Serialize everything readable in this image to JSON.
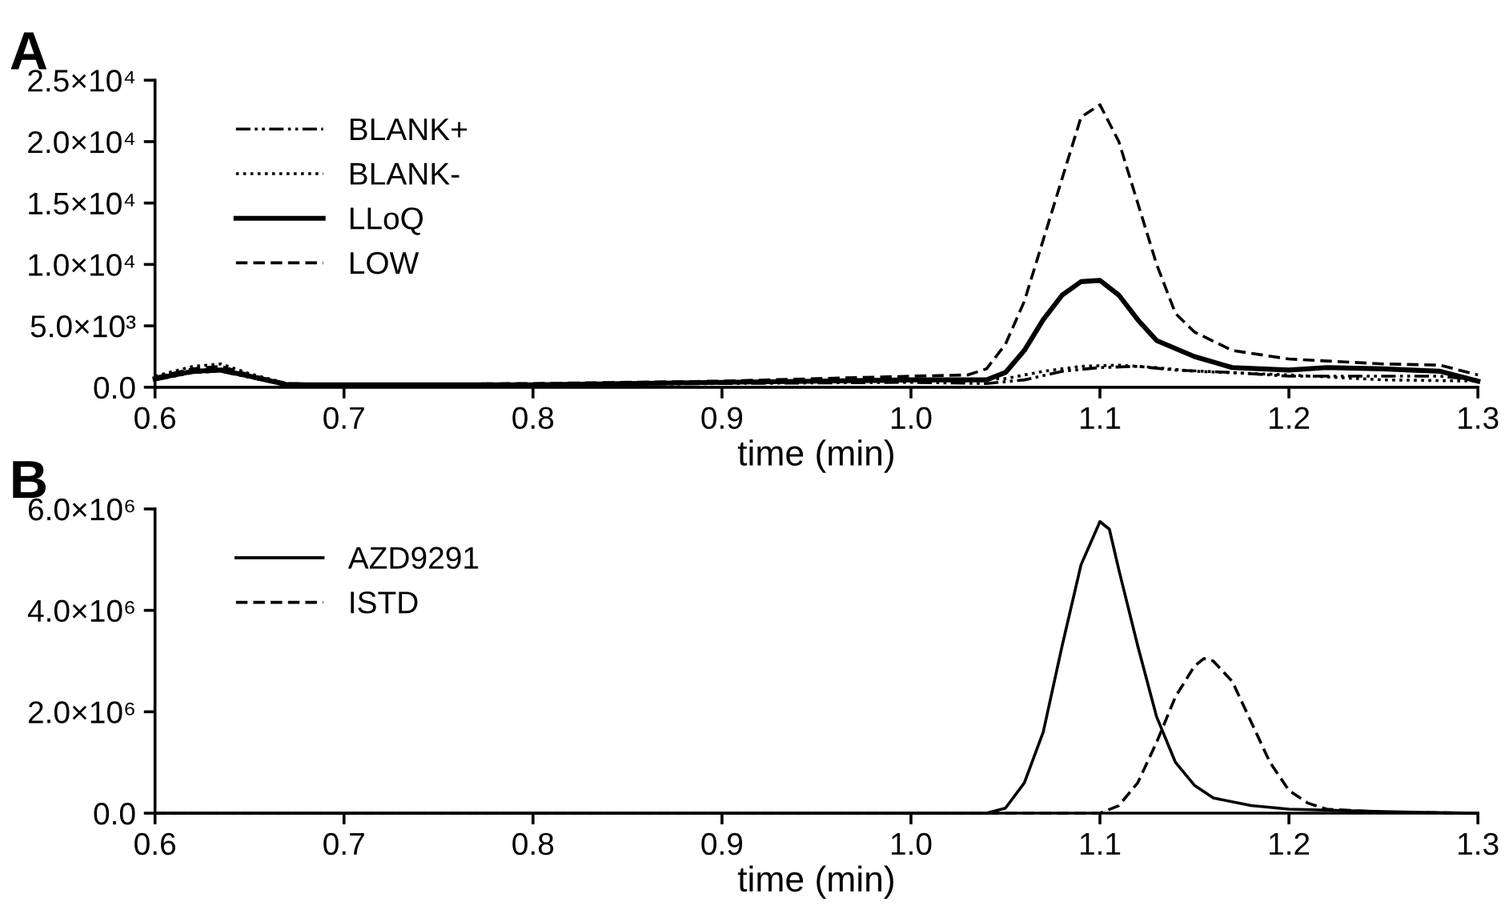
{
  "chart_data": [
    {
      "type": "line",
      "title": "A",
      "xlabel": "time (min)",
      "xlim": [
        0.6,
        1.3
      ],
      "xticks": [
        0.6,
        0.7,
        0.8,
        0.9,
        {
          "value": 1,
          "label": "1.0"
        },
        1.1,
        1.2,
        1.3
      ],
      "ylim": [
        0,
        25000
      ],
      "yticks": [
        {
          "value": 0,
          "label": "0.0"
        },
        {
          "value": 5000,
          "label": "5.0×10³"
        },
        {
          "value": 10000,
          "label": "1.0×10⁴"
        },
        {
          "value": 15000,
          "label": "1.5×10⁴"
        },
        {
          "value": 20000,
          "label": "2.0×10⁴"
        },
        {
          "value": 25000,
          "label": "2.5×10⁴"
        }
      ],
      "grid": false,
      "legend": "top left",
      "marker": "none",
      "series": [
        {
          "name": "BLANK+",
          "color": "#000000",
          "line_style": "dashdot",
          "x": [
            0.6,
            0.62,
            0.635,
            0.65,
            0.67,
            0.7,
            0.8,
            0.9,
            1.0,
            1.04,
            1.06,
            1.08,
            1.1,
            1.12,
            1.14,
            1.17,
            1.2,
            1.25,
            1.28,
            1.3
          ],
          "values": [
            600,
            1200,
            1300,
            800,
            200,
            100,
            200,
            300,
            400,
            300,
            600,
            1300,
            1600,
            1700,
            1400,
            1200,
            900,
            900,
            900,
            600
          ]
        },
        {
          "name": "BLANK-",
          "color": "#000000",
          "line_style": "dotted",
          "x": [
            0.6,
            0.62,
            0.635,
            0.65,
            0.67,
            0.7,
            0.8,
            0.9,
            1.0,
            1.05,
            1.07,
            1.09,
            1.11,
            1.13,
            1.15,
            1.2,
            1.25,
            1.3
          ],
          "values": [
            900,
            1700,
            1900,
            1100,
            300,
            200,
            200,
            400,
            500,
            700,
            1300,
            1700,
            1800,
            1600,
            1300,
            1000,
            600,
            500
          ]
        },
        {
          "name": "LLoQ",
          "color": "#000000",
          "line_style": "solid",
          "x": [
            0.6,
            0.62,
            0.635,
            0.65,
            0.67,
            0.7,
            0.8,
            0.9,
            1.0,
            1.04,
            1.05,
            1.06,
            1.07,
            1.08,
            1.09,
            1.1,
            1.11,
            1.12,
            1.13,
            1.15,
            1.17,
            1.2,
            1.22,
            1.25,
            1.28,
            1.3
          ],
          "values": [
            700,
            1300,
            1400,
            900,
            200,
            200,
            200,
            400,
            600,
            600,
            1200,
            3000,
            5500,
            7500,
            8600,
            8700,
            7500,
            5500,
            3800,
            2500,
            1600,
            1400,
            1600,
            1500,
            1300,
            500
          ]
        },
        {
          "name": "LOW",
          "color": "#000000",
          "line_style": "dashed",
          "x": [
            0.6,
            0.62,
            0.635,
            0.65,
            0.67,
            0.7,
            0.8,
            0.9,
            0.95,
            1.0,
            1.03,
            1.04,
            1.05,
            1.06,
            1.07,
            1.08,
            1.09,
            1.1,
            1.11,
            1.12,
            1.13,
            1.14,
            1.15,
            1.17,
            1.2,
            1.25,
            1.28,
            1.3
          ],
          "values": [
            800,
            1500,
            1700,
            1000,
            300,
            200,
            300,
            500,
            700,
            900,
            1000,
            1500,
            3500,
            7000,
            12000,
            17000,
            22000,
            23000,
            20000,
            15000,
            10000,
            6000,
            4500,
            3000,
            2300,
            1900,
            1800,
            1000
          ]
        }
      ]
    },
    {
      "type": "line",
      "title": "B",
      "xlabel": "time (min)",
      "xlim": [
        0.6,
        1.3
      ],
      "xticks": [
        0.6,
        0.7,
        0.8,
        0.9,
        {
          "value": 1,
          "label": "1.0"
        },
        1.1,
        1.2,
        1.3
      ],
      "ylim": [
        0,
        6000000
      ],
      "yticks": [
        {
          "value": 0,
          "label": "0.0"
        },
        {
          "value": 2000000,
          "label": "2.0×10⁶"
        },
        {
          "value": 4000000,
          "label": "4.0×10⁶"
        },
        {
          "value": 6000000,
          "label": "6.0×10⁶"
        }
      ],
      "grid": false,
      "legend": "top left",
      "marker": "none",
      "series": [
        {
          "name": "AZD9291",
          "color": "#000000",
          "line_style": "solid",
          "x": [
            0.6,
            1.04,
            1.05,
            1.06,
            1.07,
            1.08,
            1.09,
            1.1,
            1.105,
            1.11,
            1.12,
            1.13,
            1.14,
            1.15,
            1.16,
            1.18,
            1.2,
            1.25,
            1.3
          ],
          "values": [
            0,
            0,
            100000,
            600000,
            1600000,
            3300000,
            4900000,
            5750000,
            5600000,
            4800000,
            3300000,
            1900000,
            1000000,
            550000,
            300000,
            150000,
            80000,
            30000,
            0
          ]
        },
        {
          "name": "ISTD",
          "color": "#000000",
          "line_style": "dashed",
          "x": [
            0.6,
            1.1,
            1.11,
            1.12,
            1.13,
            1.14,
            1.15,
            1.155,
            1.16,
            1.17,
            1.18,
            1.19,
            1.2,
            1.21,
            1.22,
            1.25,
            1.3
          ],
          "values": [
            0,
            0,
            150000,
            600000,
            1400000,
            2300000,
            2900000,
            3050000,
            3000000,
            2600000,
            1800000,
            1000000,
            450000,
            200000,
            80000,
            20000,
            0
          ]
        }
      ]
    }
  ]
}
